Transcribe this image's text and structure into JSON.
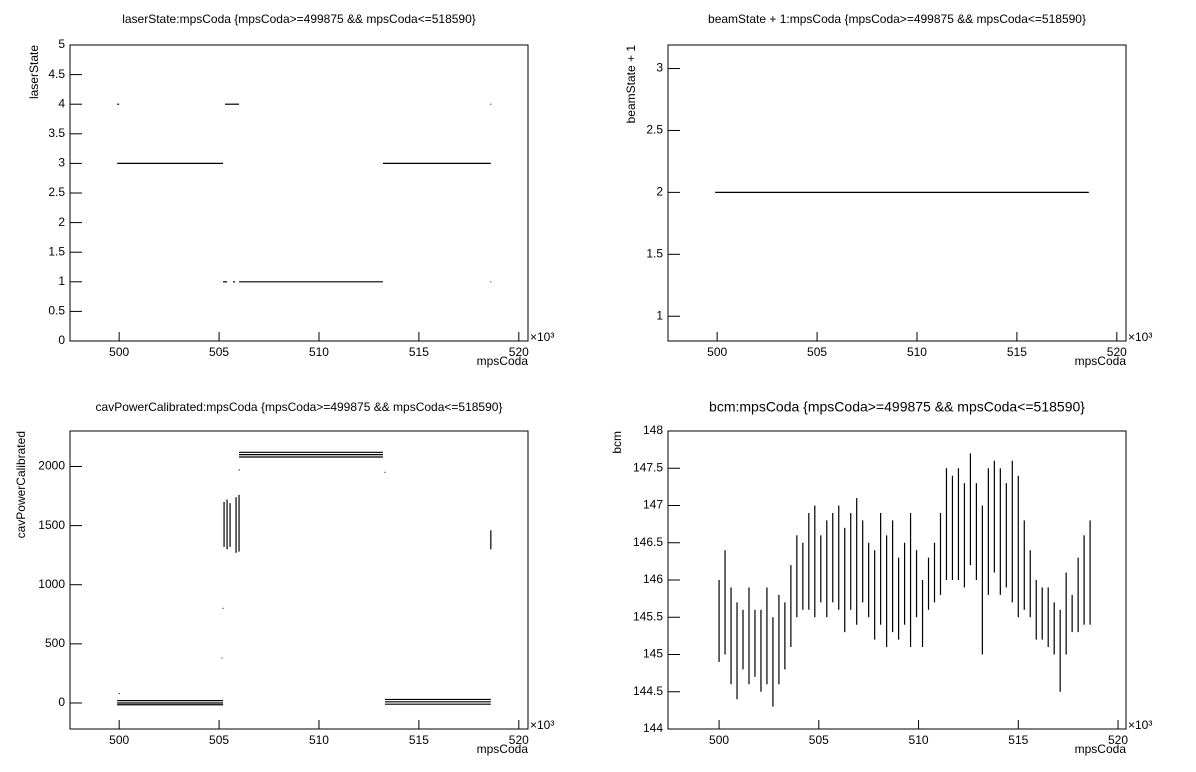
{
  "chart_data": [
    {
      "type": "line",
      "title": "laserState:mpsCoda {mpsCoda>=499875 && mpsCoda<=518590}",
      "x_label": "mpsCoda",
      "y_label": "laserState",
      "x_multiplier": "×10³",
      "xlim": [
        497.54,
        520.46
      ],
      "ylim": [
        0,
        5
      ],
      "xticks": [
        500,
        505,
        510,
        515,
        520
      ],
      "yticks": [
        0,
        0.5,
        1,
        1.5,
        2,
        2.5,
        3,
        3.5,
        4,
        4.5,
        5
      ],
      "color": "#000000",
      "x": [
        499.9,
        500.0,
        null,
        499.9,
        505.2,
        null,
        505.3,
        506.0,
        null,
        505.2,
        505.4,
        null,
        505.7,
        505.8,
        null,
        506.0,
        513.2,
        null,
        513.2,
        518.6,
        null,
        518.58,
        518.62,
        null,
        518.58,
        518.62
      ],
      "values": [
        4,
        4,
        null,
        3,
        3,
        null,
        4,
        4,
        null,
        1,
        1,
        null,
        1,
        1,
        null,
        1,
        1,
        null,
        3,
        3,
        null,
        4,
        4,
        null,
        1,
        1
      ]
    },
    {
      "type": "line",
      "title": "beamState + 1:mpsCoda {mpsCoda>=499875 && mpsCoda<=518590}",
      "x_label": "mpsCoda",
      "y_label": "beamState + 1",
      "x_multiplier": "×10³",
      "xlim": [
        497.54,
        520.46
      ],
      "ylim": [
        0.8,
        3.19
      ],
      "xticks": [
        500,
        505,
        510,
        515,
        520
      ],
      "yticks": [
        1,
        1.5,
        2,
        2.5,
        3
      ],
      "color": "#000000",
      "x": [
        499.9,
        518.6
      ],
      "values": [
        2,
        2
      ]
    },
    {
      "type": "line",
      "title": "cavPowerCalibrated:mpsCoda {mpsCoda>=499875 && mpsCoda<=518590}",
      "x_label": "mpsCoda",
      "y_label": "cavPowerCalibrated",
      "x_multiplier": "×10³",
      "xlim": [
        497.54,
        520.46
      ],
      "ylim": [
        -220,
        2300
      ],
      "xticks": [
        500,
        505,
        510,
        515,
        520
      ],
      "yticks": [
        0,
        500,
        1000,
        1500,
        2000
      ],
      "color": "#000000",
      "x": [
        499.9,
        505.2,
        null,
        499.9,
        505.2,
        null,
        499.9,
        505.2,
        null,
        499.98,
        500.03,
        null,
        505.25,
        505.25,
        null,
        505.4,
        505.4,
        null,
        505.55,
        505.55,
        null,
        505.85,
        505.85,
        null,
        506.0,
        506.0,
        null,
        505.18,
        505.22,
        null,
        505.13,
        505.17,
        null,
        505.98,
        506.03,
        null,
        506.0,
        513.2,
        null,
        506.0,
        513.2,
        null,
        506.0,
        513.2,
        null,
        513.28,
        513.32,
        null,
        513.3,
        518.6,
        null,
        513.3,
        518.6,
        null,
        513.3,
        518.6,
        null,
        518.6,
        518.6
      ],
      "values": [
        20,
        20,
        null,
        0,
        0,
        null,
        -15,
        -15,
        null,
        80,
        80,
        null,
        1320,
        1700,
        null,
        1300,
        1720,
        null,
        1320,
        1690,
        null,
        1270,
        1740,
        null,
        1280,
        1760,
        null,
        800,
        800,
        null,
        380,
        380,
        null,
        1970,
        1970,
        null,
        2120,
        2120,
        null,
        2100,
        2100,
        null,
        2080,
        2080,
        null,
        1950,
        1950,
        null,
        30,
        30,
        null,
        10,
        10,
        null,
        -10,
        -10,
        null,
        1300,
        1460
      ]
    },
    {
      "type": "line",
      "title": "bcm:mpsCoda {mpsCoda>=499875 && mpsCoda<=518590}",
      "x_label": "mpsCoda",
      "y_label": "bcm",
      "x_multiplier": "×10³",
      "xlim": [
        497.44,
        520.4
      ],
      "ylim": [
        144,
        148
      ],
      "xticks": [
        500,
        505,
        510,
        515,
        520
      ],
      "yticks": [
        144,
        144.5,
        145,
        145.5,
        146,
        146.5,
        147,
        147.5,
        148
      ],
      "color": "#000000",
      "x": [
        500.0,
        500.0,
        null,
        500.3,
        500.3,
        null,
        500.6,
        500.6,
        null,
        500.9,
        500.9,
        null,
        501.2,
        501.2,
        null,
        501.5,
        501.5,
        null,
        501.8,
        501.8,
        null,
        502.1,
        502.1,
        null,
        502.4,
        502.4,
        null,
        502.7,
        502.7,
        null,
        503.0,
        503.0,
        null,
        503.3,
        503.3,
        null,
        503.6,
        503.6,
        null,
        503.9,
        503.9,
        null,
        504.2,
        504.2,
        null,
        504.5,
        504.5,
        null,
        504.8,
        504.8,
        null,
        505.1,
        505.1,
        null,
        505.4,
        505.4,
        null,
        505.7,
        505.7,
        null,
        506.0,
        506.0,
        null,
        506.3,
        506.3,
        null,
        506.6,
        506.6,
        null,
        506.9,
        506.9,
        null,
        507.2,
        507.2,
        null,
        507.5,
        507.5,
        null,
        507.8,
        507.8,
        null,
        508.1,
        508.1,
        null,
        508.4,
        508.4,
        null,
        508.7,
        508.7,
        null,
        509.0,
        509.0,
        null,
        509.3,
        509.3,
        null,
        509.6,
        509.6,
        null,
        509.9,
        509.9,
        null,
        510.2,
        510.2,
        null,
        510.5,
        510.5,
        null,
        510.8,
        510.8,
        null,
        511.1,
        511.1,
        null,
        511.4,
        511.4,
        null,
        511.7,
        511.7,
        null,
        512.0,
        512.0,
        null,
        512.3,
        512.3,
        null,
        512.6,
        512.6,
        null,
        512.9,
        512.9,
        null,
        513.2,
        513.2,
        null,
        513.5,
        513.5,
        null,
        513.8,
        513.8,
        null,
        514.1,
        514.1,
        null,
        514.4,
        514.4,
        null,
        514.7,
        514.7,
        null,
        515.0,
        515.0,
        null,
        515.3,
        515.3,
        null,
        515.6,
        515.6,
        null,
        515.9,
        515.9,
        null,
        516.2,
        516.2,
        null,
        516.5,
        516.5,
        null,
        516.8,
        516.8,
        null,
        517.1,
        517.1,
        null,
        517.4,
        517.4,
        null,
        517.7,
        517.7,
        null,
        518.0,
        518.0,
        null,
        518.3,
        518.3,
        null,
        518.6,
        518.6
      ],
      "values": [
        144.9,
        146.0,
        null,
        145.0,
        146.4,
        null,
        144.6,
        145.9,
        null,
        144.4,
        145.7,
        null,
        144.8,
        145.6,
        null,
        144.6,
        145.9,
        null,
        144.7,
        145.6,
        null,
        144.5,
        145.6,
        null,
        144.6,
        145.9,
        null,
        144.3,
        145.5,
        null,
        144.6,
        145.8,
        null,
        144.8,
        145.7,
        null,
        145.1,
        146.2,
        null,
        145.5,
        146.6,
        null,
        145.6,
        146.5,
        null,
        145.6,
        146.9,
        null,
        145.5,
        147.0,
        null,
        145.7,
        146.6,
        null,
        145.5,
        146.8,
        null,
        145.7,
        146.9,
        null,
        145.6,
        147.0,
        null,
        145.3,
        146.7,
        null,
        145.6,
        146.9,
        null,
        145.4,
        147.1,
        null,
        145.7,
        146.8,
        null,
        145.5,
        146.5,
        null,
        145.2,
        146.4,
        null,
        145.4,
        146.9,
        null,
        145.1,
        146.6,
        null,
        145.3,
        146.8,
        null,
        145.2,
        146.3,
        null,
        145.4,
        146.5,
        null,
        145.1,
        146.9,
        null,
        145.5,
        146.4,
        null,
        145.1,
        146.0,
        null,
        145.6,
        146.3,
        null,
        145.7,
        146.5,
        null,
        145.8,
        146.9,
        null,
        146.0,
        147.5,
        null,
        146.0,
        147.4,
        null,
        146.0,
        147.5,
        null,
        145.9,
        147.3,
        null,
        146.2,
        147.7,
        null,
        146.0,
        147.3,
        null,
        145.0,
        147.0,
        null,
        145.8,
        147.5,
        null,
        146.1,
        147.6,
        null,
        145.8,
        147.5,
        null,
        145.9,
        147.3,
        null,
        145.7,
        147.6,
        null,
        145.5,
        147.4,
        null,
        145.6,
        146.8,
        null,
        145.5,
        146.4,
        null,
        145.2,
        146.0,
        null,
        145.2,
        145.9,
        null,
        145.1,
        145.9,
        null,
        145.0,
        145.7,
        null,
        144.5,
        145.6,
        null,
        145.0,
        146.1,
        null,
        145.3,
        145.8,
        null,
        145.3,
        146.3,
        null,
        145.4,
        146.6,
        null,
        145.4,
        146.8
      ]
    }
  ]
}
